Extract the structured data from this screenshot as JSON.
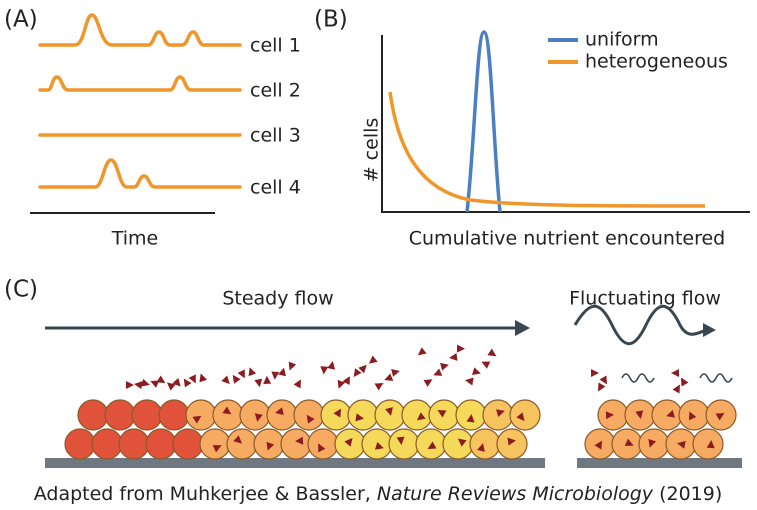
{
  "panels": {
    "a": {
      "label": "(A)",
      "cells": [
        "cell 1",
        "cell 2",
        "cell 3",
        "cell 4"
      ],
      "x_label": "Time"
    },
    "b": {
      "label": "(B)",
      "y_label": "# cells",
      "x_label": "Cumulative nutrient encountered",
      "legend": [
        "uniform",
        "heterogeneous"
      ]
    },
    "c": {
      "label": "(C)",
      "steady": "Steady flow",
      "fluctuating": "Fluctuating flow"
    }
  },
  "caption": {
    "prefix": "Adapted from Muhkerjee & Bassler, ",
    "journal": "Nature Reviews Microbiology",
    "suffix": " (2019)"
  }
}
